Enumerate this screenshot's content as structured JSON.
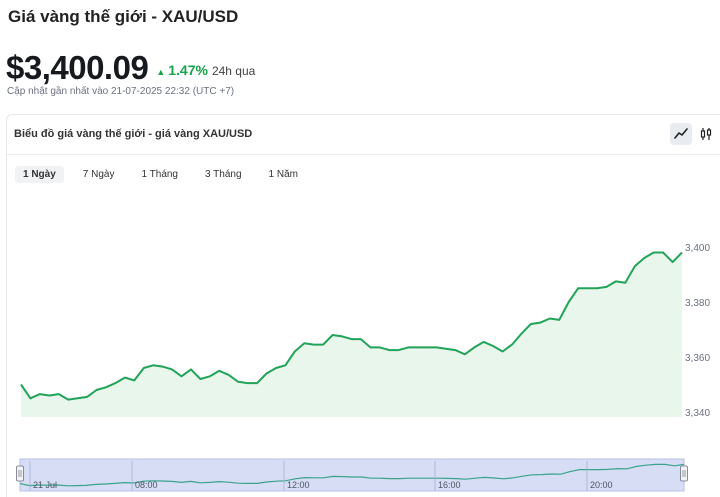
{
  "header": {
    "title": "Giá vàng thế giới - XAU/USD",
    "price": "$3,400.09",
    "change_pct": "1.47%",
    "change_period": "24h qua",
    "updated": "Cập nhật gần nhất vào 21-07-2025 22:32 (UTC +7)"
  },
  "chart_card": {
    "title": "Biểu đồ giá vàng thế giới - giá vàng XAU/USD",
    "tools": [
      "line-chart-icon",
      "candlestick-icon"
    ],
    "tabs": [
      "1 Ngày",
      "7 Ngày",
      "1 Tháng",
      "3 Tháng",
      "1 Năm"
    ],
    "active_tab": "1 Ngày"
  },
  "colors": {
    "up": "#16a34a",
    "line": "#22a35a",
    "area": "#e9f6ec",
    "navigator_bg": "#d7ddf5",
    "navigator_line": "#3aa38a"
  },
  "chart_data": {
    "type": "area",
    "ylim": [
      3339,
      3404
    ],
    "yticks": [
      3340,
      3360,
      3380,
      3400
    ],
    "ytick_labels": [
      "3,340",
      "3,360",
      "3,380",
      "3,400"
    ],
    "navigator_labels": [
      "21 Jul",
      "08:00",
      "12:00",
      "16:00",
      "20:00"
    ],
    "series": [
      {
        "values": [
          3350,
          3345,
          3346.5,
          3346,
          3346.5,
          3344.5,
          3345,
          3345.5,
          3348,
          3349,
          3350.5,
          3352.5,
          3351.5,
          3356,
          3357,
          3356.5,
          3355.5,
          3353,
          3355.5,
          3352,
          3353,
          3355,
          3353.5,
          3351,
          3350.5,
          3350.5,
          3354,
          3356,
          3357,
          3362,
          3365,
          3364.5,
          3364.5,
          3368,
          3367.5,
          3366.5,
          3366.5,
          3363.5,
          3363.5,
          3362.5,
          3362.5,
          3363.5,
          3363.5,
          3363.5,
          3363.5,
          3363,
          3362.5,
          3361,
          3363.5,
          3365.5,
          3364,
          3362,
          3364.5,
          3368.5,
          3372,
          3372.5,
          3374,
          3373.5,
          3380,
          3385,
          3385,
          3385,
          3385.5,
          3387.5,
          3387,
          3393,
          3396,
          3398,
          3398,
          3394.5,
          3398
        ]
      }
    ]
  }
}
